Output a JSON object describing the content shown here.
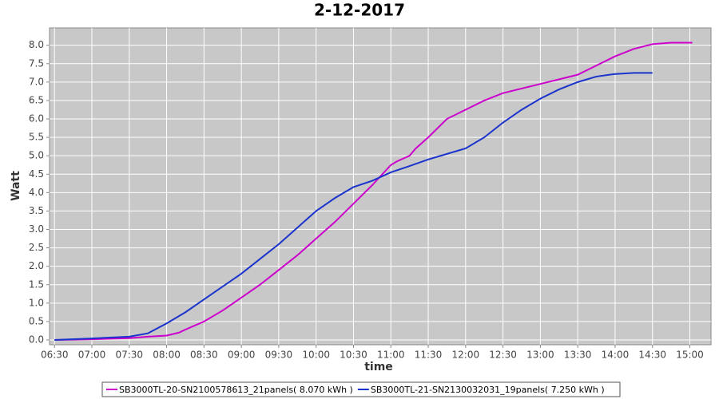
{
  "chart_data": {
    "type": "line",
    "title": "2-12-2017",
    "x_label": "time",
    "y_label": "Watt",
    "xlim": [
      "06:26",
      "15:17"
    ],
    "xticks": [
      "06:30",
      "07:00",
      "07:30",
      "08:00",
      "08:30",
      "09:00",
      "09:30",
      "10:00",
      "10:30",
      "11:00",
      "11:30",
      "12:00",
      "12:30",
      "13:00",
      "13:30",
      "14:00",
      "14:30",
      "15:00"
    ],
    "ylim": [
      -0.13,
      8.47
    ],
    "yticks": [
      {
        "value": 0,
        "label": "0.0"
      },
      0.5,
      {
        "value": 1,
        "label": "1.0"
      },
      1.5,
      {
        "value": 2,
        "label": "2.0"
      },
      2.5,
      {
        "value": 3,
        "label": "3.0"
      },
      3.5,
      {
        "value": 4,
        "label": "4.0"
      },
      4.5,
      {
        "value": 5,
        "label": "5.0"
      },
      5.5,
      {
        "value": 6,
        "label": "6.0"
      },
      6.5,
      {
        "value": 7,
        "label": "7.0"
      },
      7.5,
      {
        "value": 8,
        "label": "8.0"
      }
    ],
    "grid": true,
    "legend": "bottom",
    "series": [
      {
        "name": "SB3000TL-20-SN2100578613_21panels( 8.070 kWh )",
        "color": "#cc00cc",
        "x": [
          "06:30",
          "07:00",
          "07:30",
          "07:45",
          "08:00",
          "08:10",
          "08:15",
          "08:30",
          "08:45",
          "09:00",
          "09:15",
          "09:30",
          "09:45",
          "10:00",
          "10:15",
          "10:30",
          "10:45",
          "11:00",
          "11:05",
          "11:15",
          "11:20",
          "11:30",
          "11:45",
          "12:00",
          "12:15",
          "12:30",
          "13:00",
          "13:30",
          "13:45",
          "14:00",
          "14:15",
          "14:30",
          "14:45",
          "15:02"
        ],
        "values": [
          0,
          0.02,
          0.05,
          0.09,
          0.12,
          0.2,
          0.28,
          0.5,
          0.8,
          1.15,
          1.5,
          1.9,
          2.3,
          2.75,
          3.2,
          3.7,
          4.2,
          4.75,
          4.85,
          5.0,
          5.2,
          5.5,
          6.0,
          6.25,
          6.5,
          6.7,
          6.95,
          7.2,
          7.45,
          7.7,
          7.9,
          8.03,
          8.07,
          8.07
        ]
      },
      {
        "name": "SB3000TL-21-SN2130032031_19panels( 7.250 kWh )",
        "color": "#1a33cc",
        "x": [
          "06:30",
          "07:00",
          "07:30",
          "07:45",
          "08:00",
          "08:15",
          "08:30",
          "08:45",
          "09:00",
          "09:15",
          "09:30",
          "09:45",
          "10:00",
          "10:15",
          "10:30",
          "10:45",
          "11:00",
          "11:15",
          "11:30",
          "11:45",
          "12:00",
          "12:15",
          "12:30",
          "12:45",
          "13:00",
          "13:15",
          "13:30",
          "13:45",
          "14:00",
          "14:15",
          "14:30"
        ],
        "values": [
          0,
          0.04,
          0.09,
          0.18,
          0.45,
          0.75,
          1.1,
          1.45,
          1.8,
          2.2,
          2.6,
          3.05,
          3.5,
          3.85,
          4.15,
          4.32,
          4.55,
          4.72,
          4.9,
          5.05,
          5.2,
          5.5,
          5.9,
          6.25,
          6.55,
          6.8,
          7.0,
          7.15,
          7.22,
          7.25,
          7.25
        ]
      }
    ]
  }
}
